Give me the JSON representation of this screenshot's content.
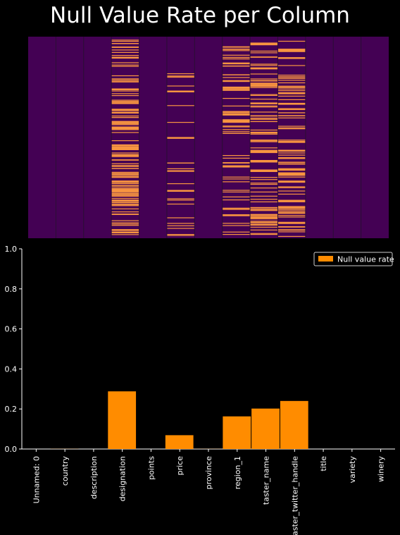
{
  "chart_data": [
    {
      "type": "heatmap",
      "title": "Null Value Rate per Column",
      "columns": [
        "Unnamed: 0",
        "country",
        "description",
        "designation",
        "points",
        "price",
        "province",
        "region_1",
        "taster_name",
        "taster_twitter_handle",
        "title",
        "variety",
        "winery"
      ],
      "null_rates": [
        0.0,
        0.0005,
        0.0,
        0.288,
        0.0,
        0.069,
        0.0005,
        0.163,
        0.202,
        0.24,
        0.0,
        0.0,
        0.0
      ],
      "colormap": {
        "present": "#440154",
        "null": "#f89540",
        "cell_divider": "#2a0f33"
      },
      "xticks": false,
      "yticks": false
    },
    {
      "type": "bar",
      "categories": [
        "Unnamed: 0",
        "country",
        "description",
        "designation",
        "points",
        "price",
        "province",
        "region_1",
        "taster_name",
        "taster_twitter_handle",
        "title",
        "variety",
        "winery"
      ],
      "series": [
        {
          "name": "Null value rate",
          "values": [
            0.0,
            0.0005,
            0.0,
            0.288,
            0.0,
            0.069,
            0.0005,
            0.163,
            0.202,
            0.24,
            0.0,
            0.0,
            0.0
          ],
          "color": "#ff8c00"
        }
      ],
      "yticks": [
        "0.0",
        "0.2",
        "0.4",
        "0.6",
        "0.8",
        "1.0"
      ],
      "ylim": [
        0,
        1
      ],
      "legend": "top-right",
      "grid": false,
      "background": "#000000",
      "axis_color": "#ffffff"
    }
  ]
}
